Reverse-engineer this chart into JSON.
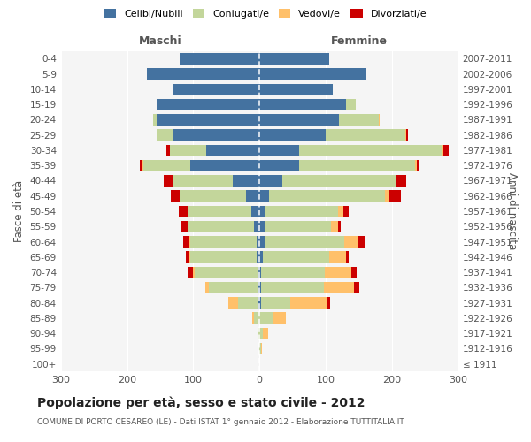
{
  "age_groups": [
    "100+",
    "95-99",
    "90-94",
    "85-89",
    "80-84",
    "75-79",
    "70-74",
    "65-69",
    "60-64",
    "55-59",
    "50-54",
    "45-49",
    "40-44",
    "35-39",
    "30-34",
    "25-29",
    "20-24",
    "15-19",
    "10-14",
    "5-9",
    "0-4"
  ],
  "birth_years": [
    "≤ 1911",
    "1912-1916",
    "1917-1921",
    "1922-1926",
    "1927-1931",
    "1932-1936",
    "1937-1941",
    "1942-1946",
    "1947-1951",
    "1952-1956",
    "1957-1961",
    "1962-1966",
    "1967-1971",
    "1972-1976",
    "1977-1981",
    "1982-1986",
    "1987-1991",
    "1992-1996",
    "1997-2001",
    "2002-2006",
    "2007-2011"
  ],
  "males": {
    "celibe": [
      0,
      0,
      0,
      0,
      2,
      2,
      3,
      4,
      5,
      8,
      13,
      20,
      40,
      105,
      80,
      130,
      155,
      155,
      130,
      170,
      120
    ],
    "coniugato": [
      0,
      0,
      2,
      8,
      30,
      75,
      95,
      100,
      100,
      100,
      95,
      100,
      90,
      70,
      55,
      25,
      5,
      0,
      0,
      0,
      0
    ],
    "vedovo": [
      0,
      0,
      0,
      3,
      15,
      5,
      3,
      2,
      2,
      1,
      1,
      1,
      1,
      1,
      0,
      0,
      0,
      0,
      0,
      0,
      0
    ],
    "divorziato": [
      0,
      0,
      0,
      0,
      0,
      0,
      8,
      5,
      8,
      10,
      13,
      13,
      13,
      5,
      5,
      0,
      0,
      0,
      0,
      0,
      0
    ]
  },
  "females": {
    "nubile": [
      0,
      0,
      0,
      0,
      2,
      2,
      3,
      5,
      8,
      8,
      8,
      15,
      35,
      60,
      60,
      100,
      120,
      130,
      110,
      160,
      105
    ],
    "coniugata": [
      0,
      2,
      5,
      20,
      45,
      95,
      95,
      100,
      120,
      100,
      110,
      175,
      170,
      175,
      215,
      120,
      60,
      15,
      0,
      0,
      0
    ],
    "vedova": [
      0,
      2,
      8,
      20,
      55,
      45,
      40,
      25,
      20,
      10,
      8,
      5,
      2,
      2,
      2,
      2,
      1,
      0,
      0,
      0,
      0
    ],
    "divorziata": [
      0,
      0,
      0,
      0,
      5,
      8,
      8,
      5,
      10,
      5,
      8,
      18,
      15,
      5,
      8,
      2,
      0,
      0,
      0,
      0,
      0
    ]
  },
  "colors": {
    "celibe": "#4472a0",
    "coniugato": "#c3d69b",
    "vedovo": "#ffc06a",
    "divorziato": "#cc0000"
  },
  "title": "Popolazione per età, sesso e stato civile - 2012",
  "subtitle": "COMUNE DI PORTO CESAREO (LE) - Dati ISTAT 1° gennaio 2012 - Elaborazione TUTTITALIA.IT",
  "ylabel_left": "Fasce di età",
  "ylabel_right": "Anni di nascita",
  "xlabel_left": "Maschi",
  "xlabel_right": "Femmine",
  "xlim": 300,
  "background_color": "#ffffff",
  "legend_labels": [
    "Celibi/Nubili",
    "Coniugati/e",
    "Vedovi/e",
    "Divorziati/e"
  ]
}
